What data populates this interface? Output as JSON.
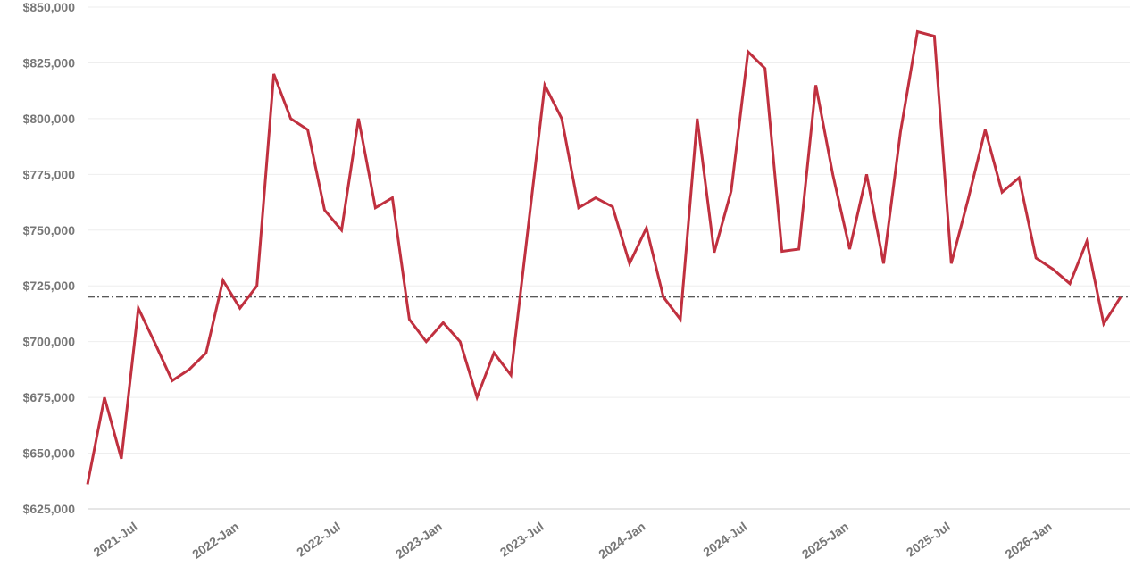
{
  "chart_data": {
    "type": "line",
    "categories": [
      null,
      null,
      null,
      "2021-Jul",
      null,
      null,
      null,
      null,
      null,
      "2022-Jan",
      null,
      null,
      null,
      null,
      null,
      "2022-Jul",
      null,
      null,
      null,
      null,
      null,
      "2023-Jan",
      null,
      null,
      null,
      null,
      null,
      "2023-Jul",
      null,
      null,
      null,
      null,
      null,
      "2024-Jan",
      null,
      null,
      null,
      null,
      null,
      "2024-Jul",
      null,
      null,
      null,
      null,
      null,
      "2025-Jan",
      null,
      null,
      null,
      null,
      null,
      "2025-Jul",
      null,
      null,
      null,
      null,
      null,
      "2026-Jan",
      null,
      null,
      null,
      null
    ],
    "series": [
      {
        "color": "#c0303f",
        "values": [
          636000,
          675000,
          647500,
          715000,
          699000,
          682500,
          687500,
          695000,
          727500,
          715000,
          725000,
          820000,
          800000,
          795000,
          759000,
          750000,
          800000,
          760000,
          764500,
          710000,
          700000,
          708500,
          700000,
          675000,
          695000,
          685000,
          750000,
          815000,
          800000,
          760000,
          764500,
          760500,
          735000,
          751000,
          720000,
          710000,
          800000,
          740000,
          767500,
          830000,
          822500,
          740500,
          741500,
          815000,
          775000,
          741500,
          775000,
          735000,
          794000,
          839000,
          837000,
          735000,
          764000,
          795000,
          767000,
          773500,
          737500,
          732500,
          726000,
          745000,
          708000,
          720000
        ]
      }
    ],
    "reference_line": 720000,
    "ylim": [
      625000,
      850000
    ],
    "yticks": [
      {
        "value": 625000,
        "label": "$625,000"
      },
      {
        "value": 650000,
        "label": "$650,000"
      },
      {
        "value": 675000,
        "label": "$675,000"
      },
      {
        "value": 700000,
        "label": "$700,000"
      },
      {
        "value": 725000,
        "label": "$725,000"
      },
      {
        "value": 750000,
        "label": "$750,000"
      },
      {
        "value": 775000,
        "label": "$775,000"
      },
      {
        "value": 800000,
        "label": "$800,000"
      },
      {
        "value": 825000,
        "label": "$825,000"
      },
      {
        "value": 850000,
        "label": "$850,000"
      }
    ],
    "grid": true
  }
}
